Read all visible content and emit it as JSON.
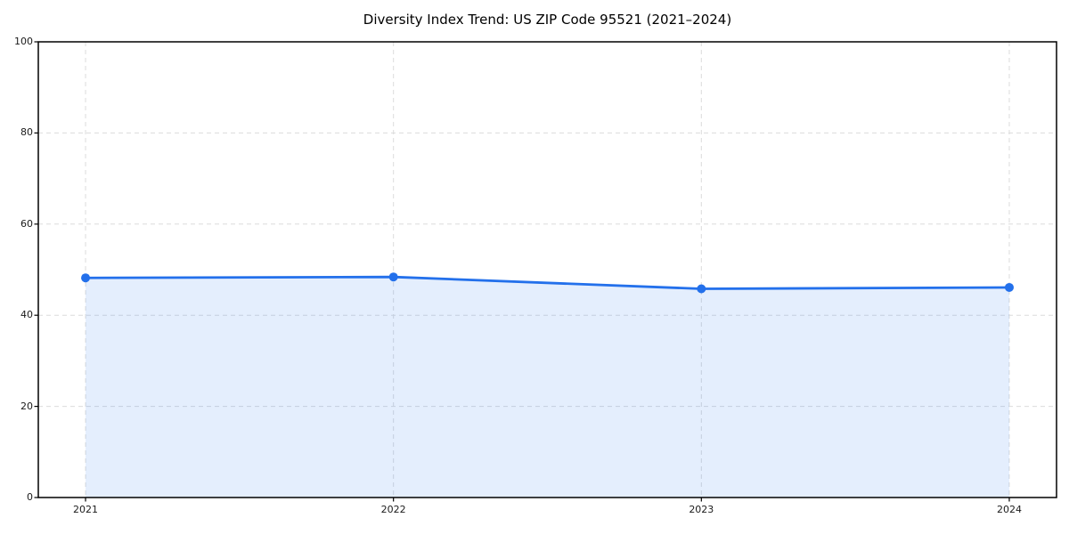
{
  "figure": {
    "title": "Diversity Index Trend: US ZIP Code 95521 (2021–2024)"
  },
  "chart_data": {
    "type": "area",
    "title": "Diversity Index Trend: US ZIP Code 95521 (2021–2024)",
    "x": [
      "2021",
      "2022",
      "2023",
      "2024"
    ],
    "series": [
      {
        "name": "Diversity Index",
        "values": [
          48.2,
          48.4,
          45.8,
          46.1
        ]
      }
    ],
    "xlabel": "",
    "ylabel": "",
    "ylim": [
      0,
      100
    ],
    "yticks": [
      0,
      20,
      40,
      60,
      80,
      100
    ],
    "xtick_labels": [
      "2021",
      "2022",
      "2023",
      "2024"
    ],
    "grid": true,
    "grid_style": "dashed",
    "legend": false,
    "markers": true,
    "style": {
      "line_color": "#2370eb",
      "marker_color": "#2370eb",
      "fill_color": "#2370eb",
      "fill_opacity": 0.12,
      "grid_color": "#dcdcdc",
      "spine_color": "#000000",
      "tick_color": "#000000",
      "tick_text_color": "#1a1a1a",
      "background": "#ffffff"
    }
  }
}
